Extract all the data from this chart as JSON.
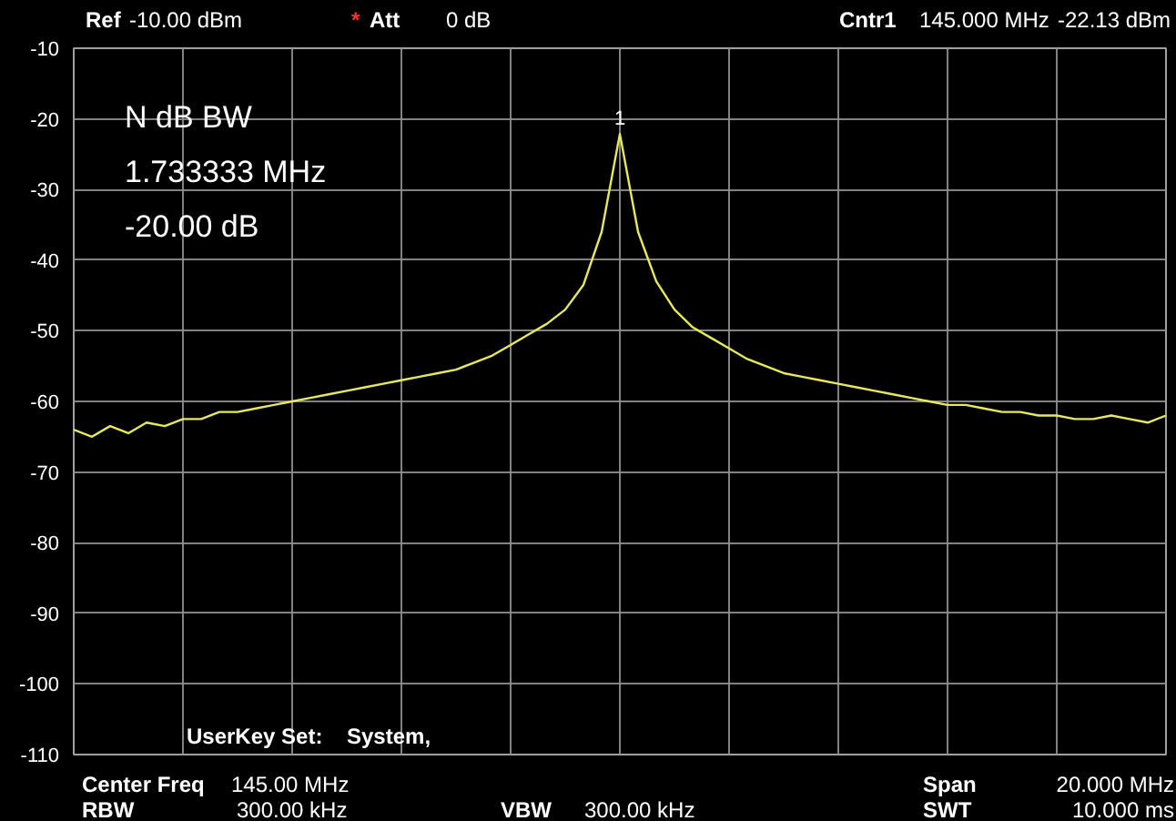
{
  "chart_data": {
    "type": "line",
    "categories": [
      null,
      null,
      null,
      null,
      null,
      null,
      null,
      null,
      null,
      null,
      null,
      null,
      null,
      null,
      null,
      null,
      null,
      null,
      null,
      null,
      null,
      null,
      null,
      null,
      null,
      null,
      null,
      null,
      null,
      null,
      null,
      null,
      null,
      null,
      null,
      null,
      null,
      null,
      null,
      null,
      null,
      null,
      null,
      null,
      null,
      null,
      null,
      null,
      null,
      null,
      null,
      null,
      null,
      null,
      null,
      null,
      null,
      null,
      null,
      null,
      null
    ],
    "series": [
      {
        "color": "#e8e85a",
        "values": [
          -64,
          -65,
          -63.5,
          -64.5,
          -63,
          -63.5,
          -62.5,
          -62.5,
          -61.5,
          -61.5,
          -61,
          -60.5,
          -60,
          -59.5,
          -59,
          -58.5,
          -58,
          -57.5,
          -57,
          -56.5,
          -56,
          -55.5,
          -54.5,
          -53.5,
          -52,
          -50.5,
          -49,
          -47,
          -43.5,
          -36,
          -22.13,
          -36,
          -43,
          -47,
          -49.5,
          -51,
          -52.5,
          -54,
          -55,
          -56,
          -56.5,
          -57,
          -57.5,
          -58,
          -58.5,
          -59,
          -59.5,
          -60,
          -60.5,
          -60.5,
          -61,
          -61.5,
          -61.5,
          -62,
          -62,
          -62.5,
          -62.5,
          -62,
          -62.5,
          -63,
          -62
        ]
      }
    ],
    "ylim": [
      -110,
      -10
    ],
    "yticks": [
      -10,
      -20,
      -30,
      -40,
      -50,
      -60,
      -70,
      -80,
      -90,
      -100,
      -110
    ],
    "tick_labels": "y",
    "grid": true,
    "annotations": [
      {
        "text": "1",
        "y": -22.13
      },
      "Ref",
      "-10.00 dBm",
      "*",
      "Att",
      "0 dB",
      "Cntr1",
      "145.000 MHz",
      "-22.13 dBm",
      "N dB BW",
      "1.733333 MHz",
      "-20.00 dB",
      "UserKey Set:",
      "System,",
      "Center Freq",
      "145.00 MHz",
      "Span",
      "20.000 MHz",
      "RBW",
      "300.00 kHz",
      "VBW",
      "300.00 kHz",
      "SWT",
      "10.000 ms"
    ]
  }
}
